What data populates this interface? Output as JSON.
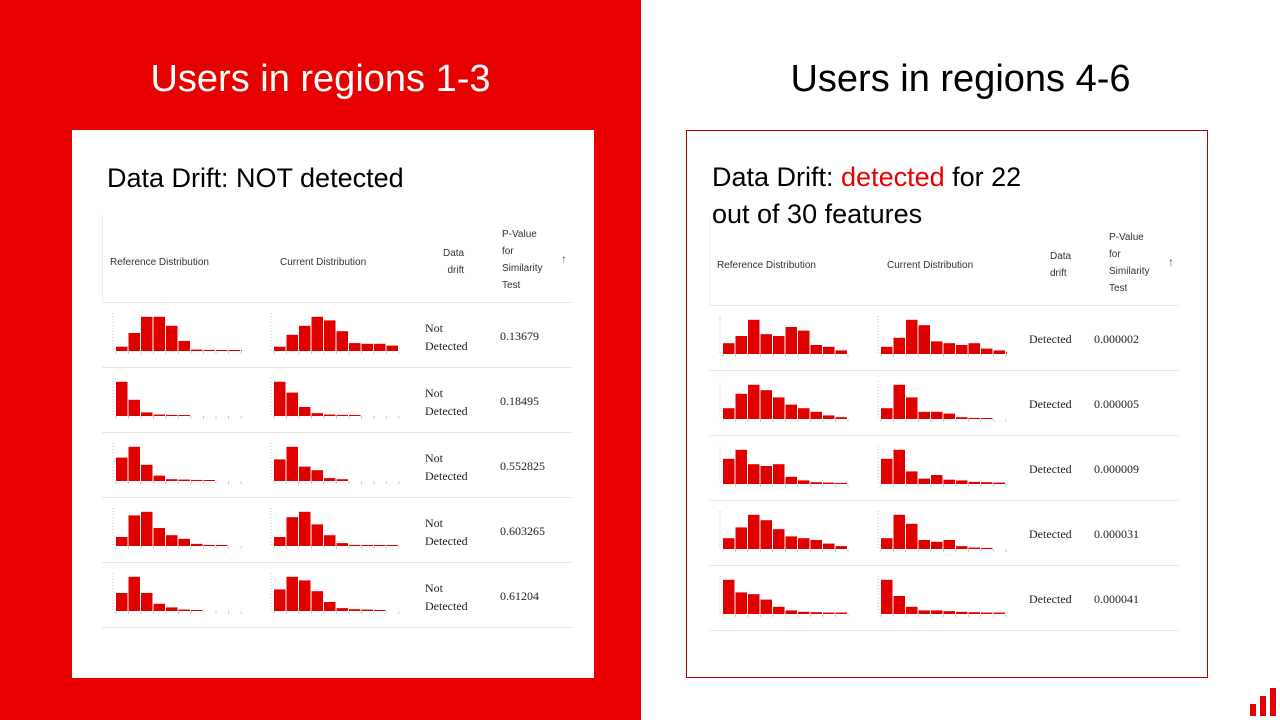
{
  "colors": {
    "brand": "#e80000",
    "bar": "#e00000",
    "white": "#ffffff"
  },
  "left": {
    "title": "Users in regions 1-3",
    "heading": "Data Drift: NOT detected",
    "columns": {
      "reference": "Reference Distribution",
      "current": "Current Distribution",
      "drift": [
        "Data",
        "drift"
      ],
      "pvalue": [
        "P-Value",
        "for",
        "Similarity",
        "Test"
      ]
    },
    "rows": [
      {
        "drift": [
          "Not",
          "Detected"
        ],
        "pvalue": "0.13679",
        "ref": [
          0.12,
          0.5,
          0.95,
          0.95,
          0.7,
          0.28,
          0.04,
          0.03,
          0.02,
          0.02,
          0.02
        ],
        "cur": [
          0.12,
          0.45,
          0.7,
          0.95,
          0.85,
          0.55,
          0.22,
          0.2,
          0.2,
          0.15
        ]
      },
      {
        "drift": [
          "Not",
          "Detected"
        ],
        "pvalue": "0.18495",
        "ref": [
          0.95,
          0.45,
          0.1,
          0.04,
          0.03,
          0.02
        ],
        "cur": [
          0.95,
          0.65,
          0.25,
          0.08,
          0.04,
          0.03,
          0.02
        ]
      },
      {
        "drift": [
          "Not",
          "Detected"
        ],
        "pvalue": "0.552825",
        "ref": [
          0.65,
          0.95,
          0.45,
          0.15,
          0.05,
          0.04,
          0.03,
          0.02
        ],
        "cur": [
          0.6,
          0.95,
          0.4,
          0.3,
          0.08,
          0.05
        ]
      },
      {
        "drift": [
          "Not",
          "Detected"
        ],
        "pvalue": "0.603265",
        "ref": [
          0.25,
          0.85,
          0.95,
          0.5,
          0.3,
          0.2,
          0.06,
          0.02,
          0.02
        ],
        "cur": [
          0.25,
          0.8,
          0.95,
          0.6,
          0.3,
          0.08,
          0.03,
          0.02,
          0.02,
          0.02
        ]
      },
      {
        "drift": [
          "Not",
          "Detected"
        ],
        "pvalue": "0.61204",
        "ref": [
          0.5,
          0.95,
          0.5,
          0.2,
          0.1,
          0.04,
          0.02
        ],
        "cur": [
          0.6,
          0.95,
          0.85,
          0.55,
          0.25,
          0.08,
          0.05,
          0.04,
          0.02
        ]
      }
    ]
  },
  "right": {
    "title": "Users in regions 4-6",
    "heading": {
      "prefix": "Data Drift: ",
      "highlight": "detected",
      "suffix_line1": " for 22",
      "line2": "out of 30 features"
    },
    "columns": {
      "reference": "Reference Distribution",
      "current": "Current Distribution",
      "drift": [
        "Data",
        "drift"
      ],
      "pvalue": [
        "P-Value",
        "for",
        "Similarity",
        "Test"
      ]
    },
    "rows": [
      {
        "drift": "Detected",
        "pvalue": "0.000002",
        "ref": [
          0.3,
          0.5,
          0.95,
          0.55,
          0.5,
          0.75,
          0.65,
          0.25,
          0.2,
          0.1
        ],
        "cur": [
          0.2,
          0.45,
          0.95,
          0.8,
          0.35,
          0.3,
          0.25,
          0.3,
          0.15,
          0.1,
          0.05
        ]
      },
      {
        "drift": "Detected",
        "pvalue": "0.000005",
        "ref": [
          0.3,
          0.7,
          0.95,
          0.8,
          0.6,
          0.4,
          0.3,
          0.2,
          0.1,
          0.05
        ],
        "cur": [
          0.3,
          0.95,
          0.6,
          0.2,
          0.2,
          0.15,
          0.05,
          0.03,
          0.02
        ]
      },
      {
        "drift": "Detected",
        "pvalue": "0.000009",
        "ref": [
          0.7,
          0.95,
          0.55,
          0.5,
          0.55,
          0.2,
          0.1,
          0.05,
          0.04,
          0.03
        ],
        "cur": [
          0.7,
          0.95,
          0.35,
          0.15,
          0.25,
          0.12,
          0.1,
          0.06,
          0.05,
          0.04
        ]
      },
      {
        "drift": "Detected",
        "pvalue": "0.000031",
        "ref": [
          0.3,
          0.6,
          0.95,
          0.8,
          0.55,
          0.35,
          0.3,
          0.25,
          0.15,
          0.08
        ],
        "cur": [
          0.3,
          0.95,
          0.7,
          0.25,
          0.2,
          0.25,
          0.08,
          0.04,
          0.03
        ]
      },
      {
        "drift": "Detected",
        "pvalue": "0.000041",
        "ref": [
          0.95,
          0.6,
          0.55,
          0.4,
          0.2,
          0.1,
          0.06,
          0.05,
          0.04,
          0.04
        ],
        "cur": [
          0.95,
          0.5,
          0.2,
          0.1,
          0.1,
          0.08,
          0.06,
          0.05,
          0.04,
          0.04
        ]
      }
    ]
  },
  "logo": {
    "icon": "bar-chart-logo-icon"
  }
}
